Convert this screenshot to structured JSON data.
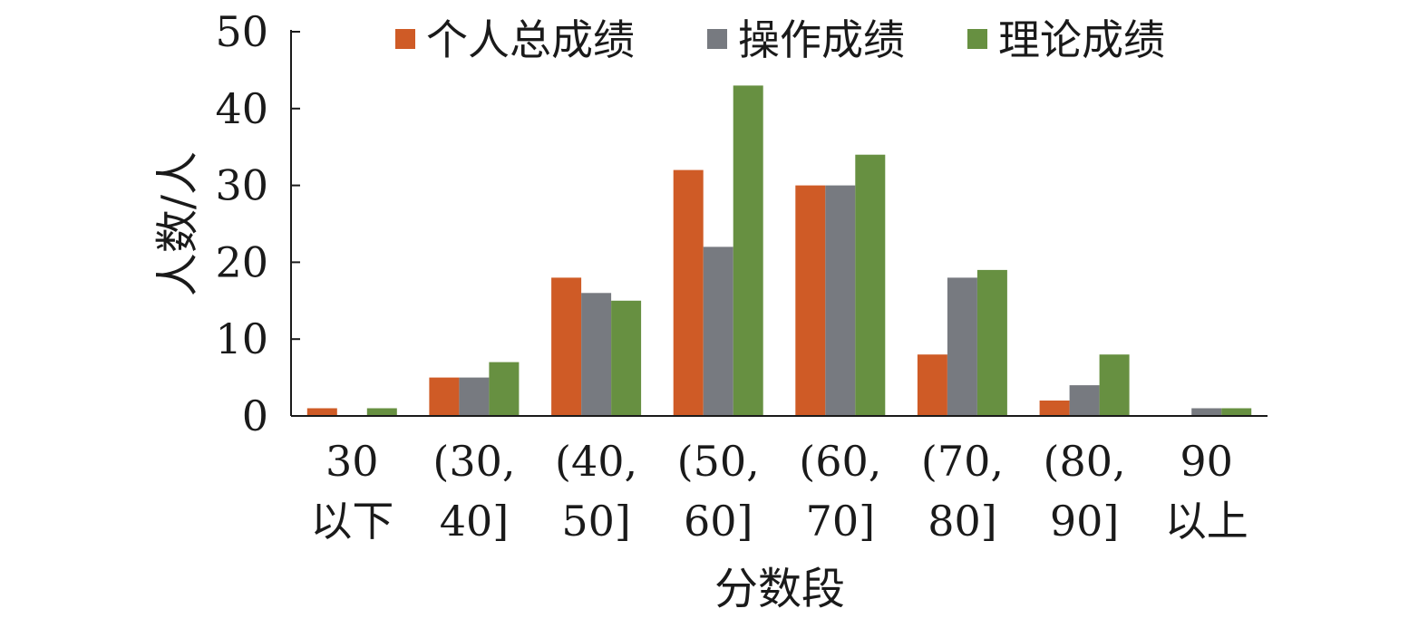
{
  "chart_data": {
    "type": "bar",
    "title": "",
    "xlabel": "分数段",
    "ylabel": "人数/人",
    "ylim": [
      0,
      50
    ],
    "yticks": [
      "0",
      "10",
      "20",
      "30",
      "40",
      "50"
    ],
    "categories": [
      [
        "30",
        "以下"
      ],
      [
        "(30,",
        "40]"
      ],
      [
        "(40,",
        "50]"
      ],
      [
        "(50,",
        "60]"
      ],
      [
        "(60,",
        "70]"
      ],
      [
        "(70,",
        "80]"
      ],
      [
        "(80,",
        "90]"
      ],
      [
        "90",
        "以上"
      ]
    ],
    "series": [
      {
        "name": "个人总成绩",
        "color": "#cf5b26",
        "values": [
          1,
          5,
          18,
          32,
          30,
          8,
          2,
          0
        ]
      },
      {
        "name": "操作成绩",
        "color": "#777a80",
        "values": [
          0,
          5,
          16,
          22,
          30,
          18,
          4,
          1
        ]
      },
      {
        "name": "理论成绩",
        "color": "#679041",
        "values": [
          1,
          7,
          15,
          43,
          34,
          19,
          8,
          1
        ]
      }
    ],
    "legend_position": "top",
    "grid": false
  }
}
